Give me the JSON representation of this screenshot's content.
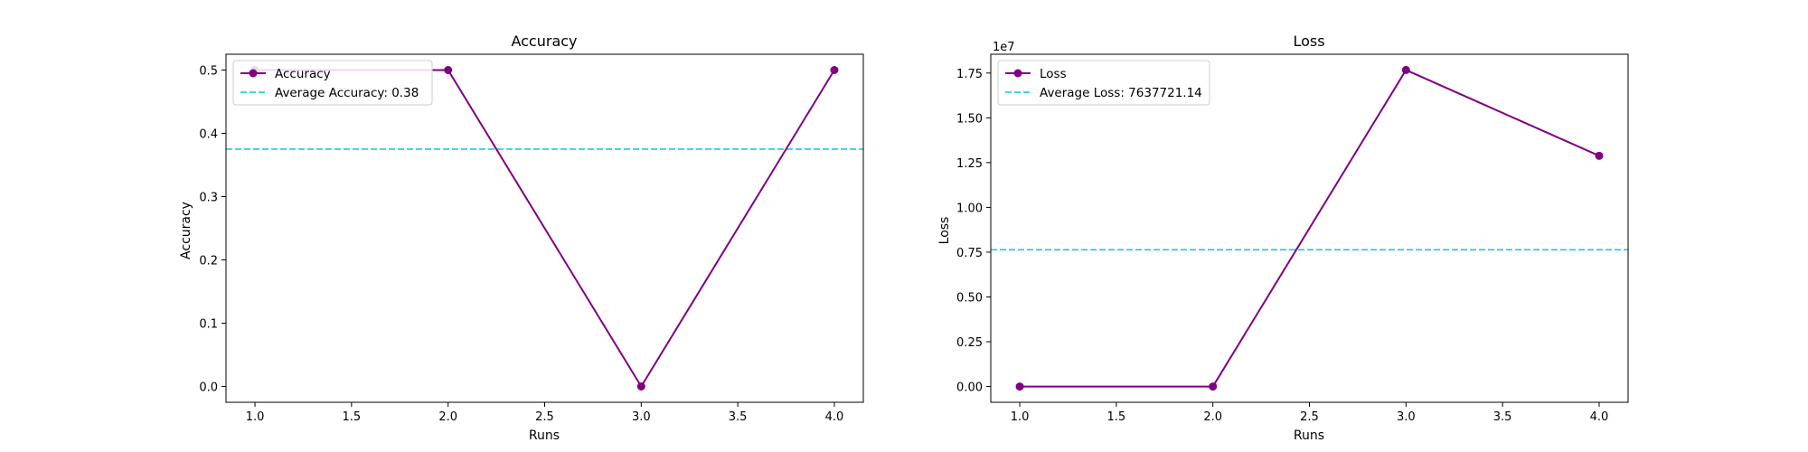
{
  "colors": {
    "series": "#800080",
    "average": "#00CED1",
    "axes": "#000000",
    "background": "#ffffff"
  },
  "chart_data": [
    {
      "type": "line",
      "title": "Accuracy",
      "xlabel": "Runs",
      "ylabel": "Accuracy",
      "xlim": [
        0.85,
        4.15
      ],
      "ylim": [
        -0.025,
        0.525
      ],
      "x_ticks": [
        1.0,
        1.5,
        2.0,
        2.5,
        3.0,
        3.5,
        4.0
      ],
      "x_tick_labels": [
        "1.0",
        "1.5",
        "2.0",
        "2.5",
        "3.0",
        "3.5",
        "4.0"
      ],
      "y_ticks": [
        0.0,
        0.1,
        0.2,
        0.3,
        0.4,
        0.5
      ],
      "y_tick_labels": [
        "0.0",
        "0.1",
        "0.2",
        "0.3",
        "0.4",
        "0.5"
      ],
      "grid": false,
      "legend_position": "upper-left",
      "series": [
        {
          "name": "Accuracy",
          "x": [
            1,
            2,
            3,
            4
          ],
          "y": [
            0.5,
            0.5,
            0.0,
            0.5
          ],
          "marker": "circle",
          "line": "solid"
        }
      ],
      "hlines": [
        {
          "name": "Average Accuracy: 0.38",
          "y": 0.375,
          "line": "dashed"
        }
      ]
    },
    {
      "type": "line",
      "title": "Loss",
      "xlabel": "Runs",
      "ylabel": "Loss",
      "y_offset_label": "1e7",
      "xlim": [
        0.85,
        4.15
      ],
      "ylim": [
        -0.088,
        1.855
      ],
      "x_ticks": [
        1.0,
        1.5,
        2.0,
        2.5,
        3.0,
        3.5,
        4.0
      ],
      "x_tick_labels": [
        "1.0",
        "1.5",
        "2.0",
        "2.5",
        "3.0",
        "3.5",
        "4.0"
      ],
      "y_ticks": [
        0.0,
        0.25,
        0.5,
        0.75,
        1.0,
        1.25,
        1.5,
        1.75
      ],
      "y_tick_labels": [
        "0.00",
        "0.25",
        "0.50",
        "0.75",
        "1.00",
        "1.25",
        "1.50",
        "1.75"
      ],
      "grid": false,
      "legend_position": "upper-left",
      "series": [
        {
          "name": "Loss",
          "x": [
            1,
            2,
            3,
            4
          ],
          "y": [
            0.0,
            0.0,
            1.767,
            1.288
          ],
          "marker": "circle",
          "line": "solid"
        }
      ],
      "hlines": [
        {
          "name": "Average Loss: 7637721.14",
          "y": 0.7638,
          "line": "dashed"
        }
      ]
    }
  ]
}
